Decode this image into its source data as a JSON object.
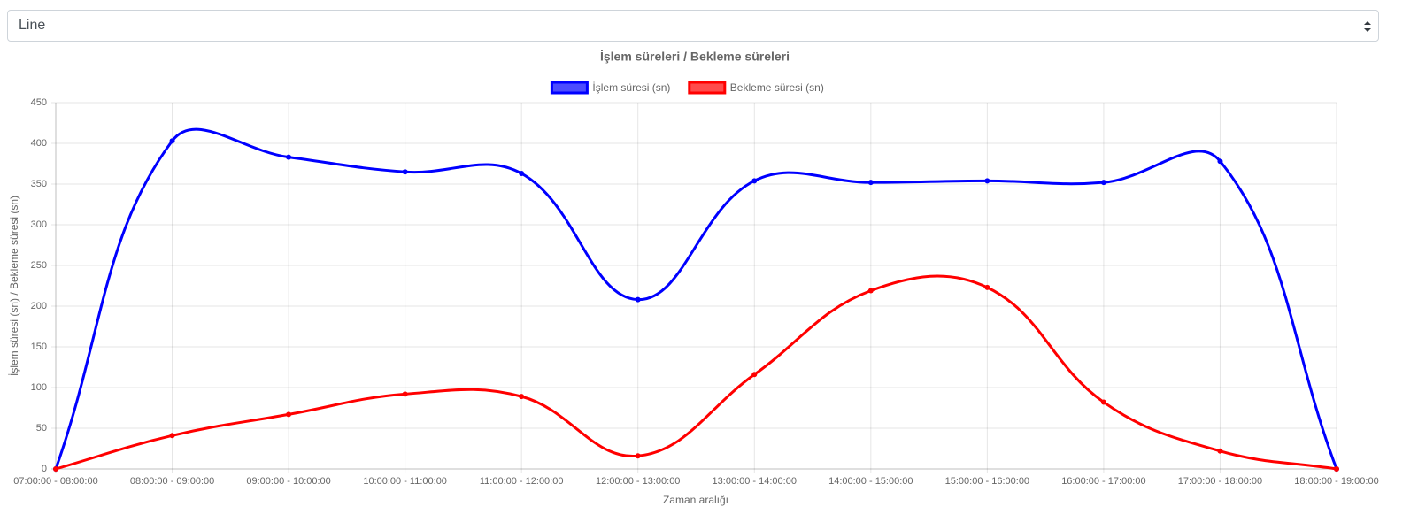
{
  "chart_type_select": "Line",
  "chart_data": {
    "type": "line",
    "title": "İşlem süreleri / Bekleme süreleri",
    "x_label": "Zaman aralığı",
    "y_label": "İşlem süresi (sn) / Bekleme süresi (sn)",
    "categories": [
      "07:00:00 - 08:00:00",
      "08:00:00 - 09:00:00",
      "09:00:00 - 10:00:00",
      "10:00:00 - 11:00:00",
      "11:00:00 - 12:00:00",
      "12:00:00 - 13:00:00",
      "13:00:00 - 14:00:00",
      "14:00:00 - 15:00:00",
      "15:00:00 - 16:00:00",
      "16:00:00 - 17:00:00",
      "17:00:00 - 18:00:00",
      "18:00:00 - 19:00:00"
    ],
    "series": [
      {
        "name": "İşlem süresi (sn)",
        "color": "#0000ff",
        "values": [
          0,
          403,
          383,
          365,
          363,
          208,
          354,
          352,
          354,
          352,
          378,
          0
        ]
      },
      {
        "name": "Bekleme süresi (sn)",
        "color": "#ff0000",
        "values": [
          0,
          41,
          67,
          92,
          89,
          16,
          116,
          219,
          223,
          82,
          22,
          0
        ]
      }
    ],
    "ylim": [
      0,
      450
    ],
    "yticks": [
      0,
      50,
      100,
      150,
      200,
      250,
      300,
      350,
      400,
      450
    ],
    "grid": true,
    "legend": "top"
  }
}
